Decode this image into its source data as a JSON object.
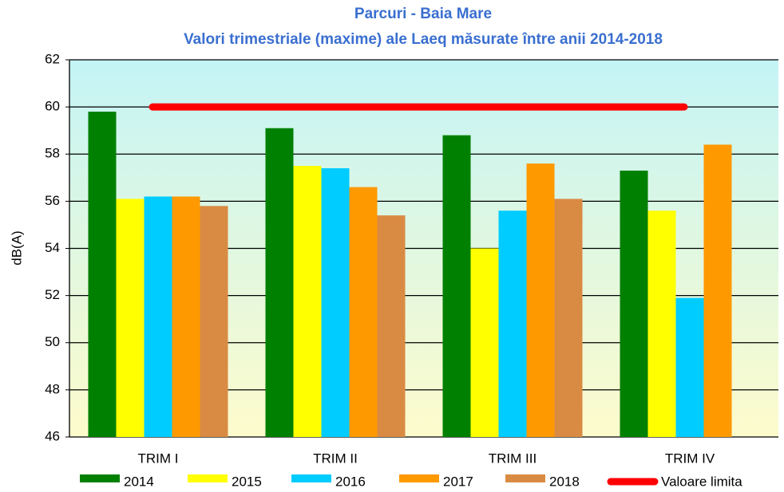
{
  "chart_data": {
    "type": "bar",
    "title": "Parcuri - Baia Mare",
    "subtitle": "Valori trimestriale (maxime) ale Laeq măsurate între anii 2014-2018",
    "y_label": "dB(A)",
    "categories": [
      "TRIM I",
      "TRIM II",
      "TRIM III",
      "TRIM IV"
    ],
    "series": [
      {
        "name": "2014",
        "color": "#008000",
        "values": [
          59.8,
          59.1,
          58.8,
          57.3
        ]
      },
      {
        "name": "2015",
        "color": "#ffff00",
        "values": [
          56.1,
          57.5,
          54.0,
          55.6
        ]
      },
      {
        "name": "2016",
        "color": "#00ccff",
        "values": [
          56.2,
          57.4,
          55.6,
          51.9
        ]
      },
      {
        "name": "2017",
        "color": "#ff9900",
        "values": [
          56.2,
          56.6,
          57.6,
          58.4
        ]
      },
      {
        "name": "2018",
        "color": "#d98b43",
        "values": [
          55.8,
          55.4,
          56.1,
          null
        ]
      },
      {
        "name": "Valoare limita",
        "color": "#ff0000",
        "type": "line",
        "values": [
          60,
          60,
          60,
          60
        ]
      }
    ],
    "ylim": [
      46,
      62
    ],
    "yticks": [
      46,
      48,
      50,
      52,
      54,
      56,
      58,
      60,
      62
    ],
    "grid": true
  }
}
